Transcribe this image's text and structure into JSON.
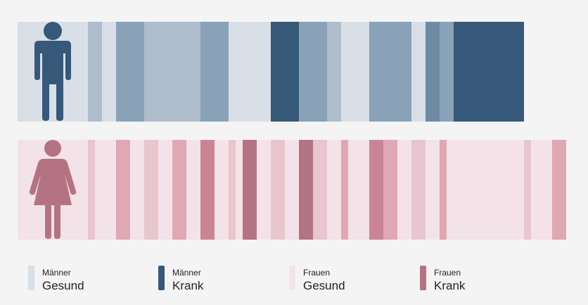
{
  "chart_data": {
    "type": "strip",
    "rows": [
      {
        "key": "men",
        "healthy_color": "#d8dfe7",
        "bands": [
          {
            "x": [
              0.0,
              0.5
            ],
            "category": "healthy"
          },
          {
            "x": [
              0.5,
              0.6
            ],
            "category": "mixed-light"
          },
          {
            "x": [
              0.7,
              0.9
            ],
            "category": "mixed-mid"
          },
          {
            "x": [
              0.9,
              1.3
            ],
            "category": "mixed-light"
          },
          {
            "x": [
              1.3,
              1.5
            ],
            "category": "mixed-mid"
          },
          {
            "x": [
              1.8,
              2.0
            ],
            "category": "sick"
          },
          {
            "x": [
              2.0,
              2.2
            ],
            "category": "mixed-mid"
          },
          {
            "x": [
              2.2,
              2.3
            ],
            "category": "mixed-light"
          },
          {
            "x": [
              2.5,
              2.8
            ],
            "category": "mixed-mid"
          },
          {
            "x": [
              2.9,
              3.0
            ],
            "category": "mixed-dark"
          },
          {
            "x": [
              3.0,
              3.1
            ],
            "category": "mixed-mid"
          },
          {
            "x": [
              3.1,
              3.6
            ],
            "category": "sick"
          }
        ],
        "extent": [
          0,
          3.6
        ]
      },
      {
        "key": "women",
        "healthy_color": "#f3e3e8",
        "bands": [
          {
            "x": [
              0.5,
              0.55
            ],
            "category": "mixed-light"
          },
          {
            "x": [
              0.7,
              0.8
            ],
            "category": "mixed-mid"
          },
          {
            "x": [
              0.9,
              1.0
            ],
            "category": "mixed-light"
          },
          {
            "x": [
              1.1,
              1.2
            ],
            "category": "mixed-mid"
          },
          {
            "x": [
              1.3,
              1.4
            ],
            "category": "mixed-dark"
          },
          {
            "x": [
              1.5,
              1.55
            ],
            "category": "mixed-light"
          },
          {
            "x": [
              1.6,
              1.7
            ],
            "category": "sick"
          },
          {
            "x": [
              1.8,
              1.9
            ],
            "category": "mixed-light"
          },
          {
            "x": [
              2.0,
              2.1
            ],
            "category": "sick"
          },
          {
            "x": [
              2.1,
              2.2
            ],
            "category": "mixed-light"
          },
          {
            "x": [
              2.3,
              2.35
            ],
            "category": "mixed-mid"
          },
          {
            "x": [
              2.5,
              2.6
            ],
            "category": "mixed-dark"
          },
          {
            "x": [
              2.6,
              2.7
            ],
            "category": "mixed-mid"
          },
          {
            "x": [
              2.8,
              2.9
            ],
            "category": "mixed-light"
          },
          {
            "x": [
              3.0,
              3.05
            ],
            "category": "mixed-mid"
          },
          {
            "x": [
              3.6,
              3.65
            ],
            "category": "mixed-light"
          },
          {
            "x": [
              3.8,
              3.9
            ],
            "category": "mixed-mid"
          }
        ],
        "extent": [
          0,
          3.9
        ]
      }
    ],
    "legend": [
      {
        "group": "Männer",
        "status": "Gesund",
        "color": "#d8dfe7"
      },
      {
        "group": "Männer",
        "status": "Krank",
        "color": "#36597a"
      },
      {
        "group": "Frauen",
        "status": "Gesund",
        "color": "#f3e3e8"
      },
      {
        "group": "Frauen",
        "status": "Krank",
        "color": "#b47383"
      }
    ],
    "legend_placement": "bottom",
    "grid": false
  }
}
